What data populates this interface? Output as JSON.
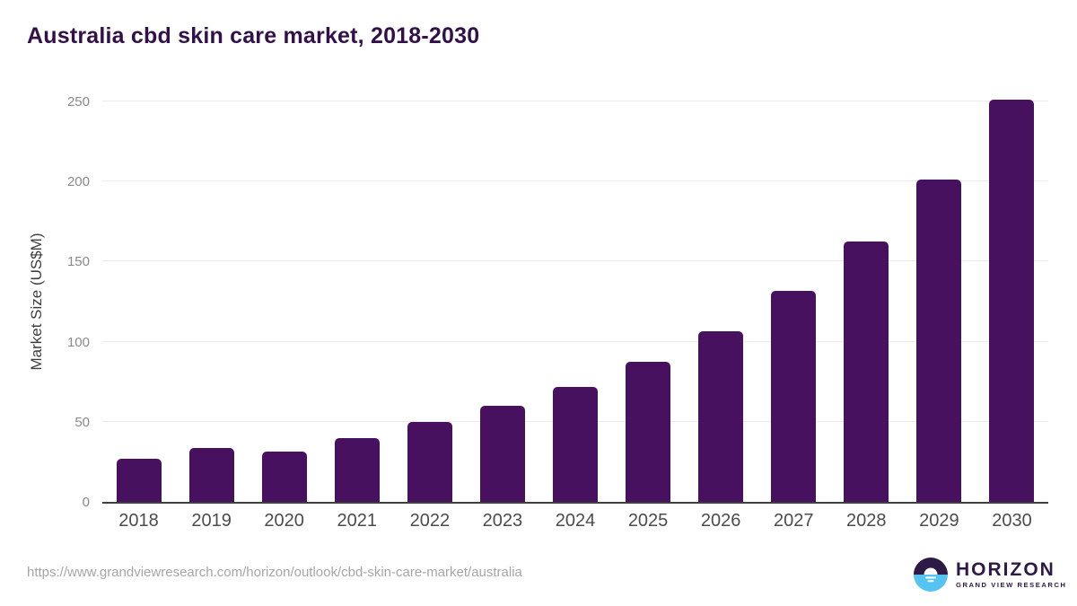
{
  "title": "Australia cbd skin care market, 2018-2030",
  "chart_data": {
    "type": "bar",
    "title": "Australia cbd skin care market, 2018-2030",
    "categories": [
      "2018",
      "2019",
      "2020",
      "2021",
      "2022",
      "2023",
      "2024",
      "2025",
      "2026",
      "2027",
      "2028",
      "2029",
      "2030"
    ],
    "values": [
      27,
      33.4,
      31.2,
      40,
      49.8,
      59.9,
      72,
      87.4,
      106.7,
      131.5,
      162.3,
      201.3,
      251.2
    ],
    "xlabel": "",
    "ylabel": "Market Size (US$M)",
    "ylim": [
      0,
      250
    ],
    "yticks": [
      0,
      50,
      100,
      150,
      200,
      250
    ],
    "grid": "horizontal-only",
    "legend": "none",
    "bar_color": "#471160"
  },
  "footer": {
    "source_url": "https://www.grandviewresearch.com/horizon/outlook/cbd-skin-care-market/australia",
    "logo": {
      "brand": "HORIZON",
      "subtitle": "GRAND VIEW RESEARCH"
    }
  },
  "colors": {
    "title_text": "#33104a",
    "bar": "#471160",
    "axis_line": "#3f3f3f",
    "gridline": "#ececec",
    "y_tick_text": "#8a8a8a",
    "x_tick_text": "#4c4c4c",
    "url_text": "#a6a6a6",
    "logo_purple": "#2e1a47",
    "logo_blue": "#55c4f0"
  }
}
